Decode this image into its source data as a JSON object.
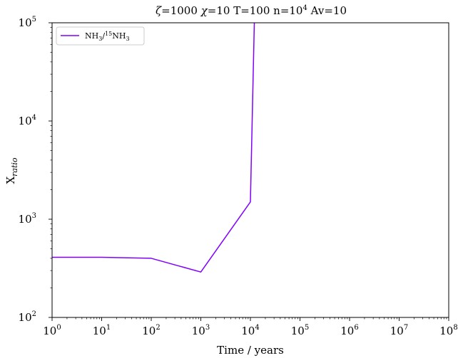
{
  "chart_data": {
    "type": "line",
    "title": "ζ=1000 χ=10 T=100 n=10⁴  Av=10",
    "title_parts": {
      "zeta": "ζ",
      "zeta_val": "=1000 ",
      "chi": "χ",
      "chi_val": "=10 T=100 n=10",
      "n_exp": "4",
      "tail": "  Av=10"
    },
    "xlabel": "Time / years",
    "ylabel": "X",
    "ylabel_sub": "ratio",
    "x_scale": "log",
    "y_scale": "log",
    "xlim": [
      1,
      100000000
    ],
    "ylim": [
      100,
      100000
    ],
    "x_ticks": [
      {
        "base": "10",
        "exp": "0",
        "value": 1
      },
      {
        "base": "10",
        "exp": "1",
        "value": 10
      },
      {
        "base": "10",
        "exp": "2",
        "value": 100
      },
      {
        "base": "10",
        "exp": "3",
        "value": 1000
      },
      {
        "base": "10",
        "exp": "4",
        "value": 10000
      },
      {
        "base": "10",
        "exp": "5",
        "value": 100000
      },
      {
        "base": "10",
        "exp": "6",
        "value": 1000000
      },
      {
        "base": "10",
        "exp": "7",
        "value": 10000000
      },
      {
        "base": "10",
        "exp": "8",
        "value": 100000000
      }
    ],
    "y_ticks": [
      {
        "base": "10",
        "exp": "2",
        "value": 100
      },
      {
        "base": "10",
        "exp": "3",
        "value": 1000
      },
      {
        "base": "10",
        "exp": "4",
        "value": 10000
      },
      {
        "base": "10",
        "exp": "5",
        "value": 100000
      }
    ],
    "grid": false,
    "legend_position": "top-left",
    "legend_label": {
      "a": "NH",
      "a_sub": "3",
      "b": "/",
      "b_sup": "15",
      "c": "NH",
      "c_sub": "3"
    },
    "series": [
      {
        "name": "NH3/15NH3",
        "color": "#8000ff",
        "x": [
          1,
          10,
          100,
          1000,
          10000,
          12000,
          13000
        ],
        "y": [
          410,
          410,
          400,
          290,
          1500,
          100000,
          1000000
        ]
      }
    ]
  }
}
